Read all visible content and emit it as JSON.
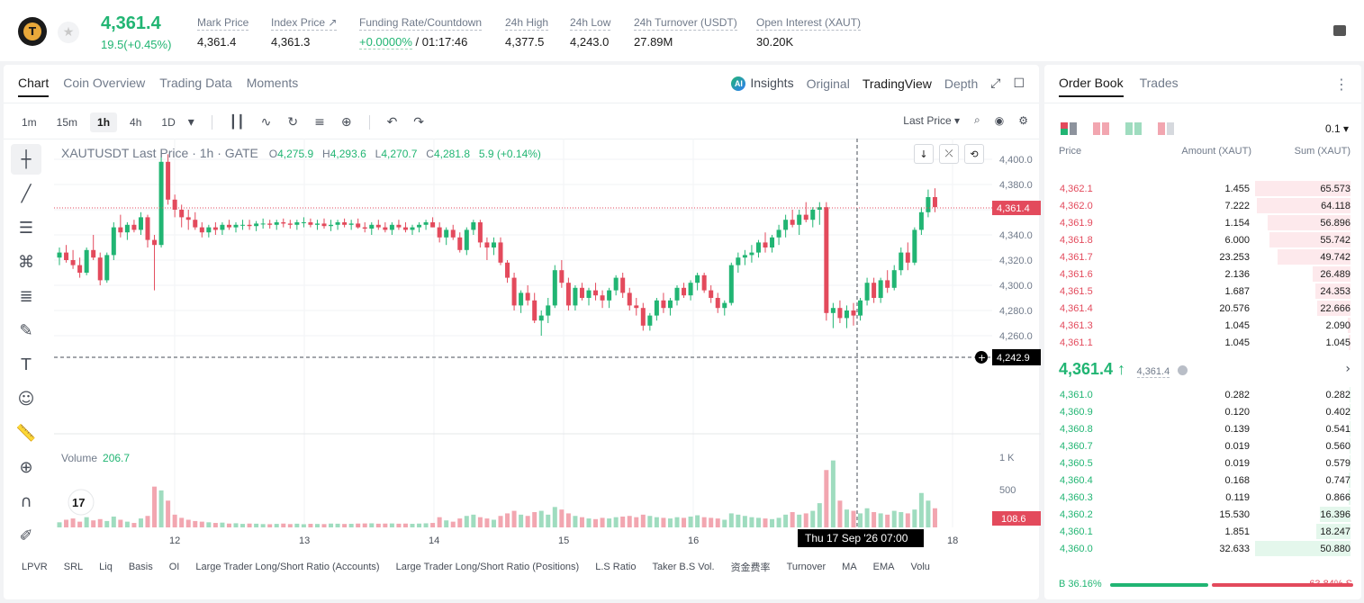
{
  "header": {
    "logo_icon": "tether-gold-icon",
    "last_price": "4,361.4",
    "change": "19.5(+0.45%)",
    "stats": [
      {
        "label": "Mark Price",
        "value": "4,361.4"
      },
      {
        "label": "Index Price ↗",
        "value": "4,361.3"
      },
      {
        "label": "Funding Rate/Countdown",
        "value_green": "+0.0000%",
        "value": " / 01:17:46"
      },
      {
        "label": "24h High",
        "value": "4,377.5"
      },
      {
        "label": "24h Low",
        "value": "4,243.0"
      },
      {
        "label": "24h Turnover (USDT)",
        "value": "27.89M"
      },
      {
        "label": "Open Interest (XAUT)",
        "value": "30.20K"
      }
    ]
  },
  "chart_tabs": [
    "Chart",
    "Coin Overview",
    "Trading Data",
    "Moments"
  ],
  "view_tabs": {
    "insights": "Insights",
    "original": "Original",
    "tradingview": "TradingView",
    "depth": "Depth"
  },
  "timeframes": [
    "1m",
    "15m",
    "1h",
    "4h",
    "1D"
  ],
  "last_price_selector": "Last Price ▾",
  "ohlc": {
    "symbol": "XAUTUSDT Last Price · 1h · GATE",
    "o": "4,275.9",
    "h": "4,293.6",
    "l": "4,270.7",
    "c": "4,281.8",
    "chg": "5.9 (+0.14%)"
  },
  "volume": {
    "label": "Volume",
    "value": "206.7"
  },
  "chart_labels": {
    "price_tag": "4,361.4",
    "crosshair_price": "4,242.9",
    "vol_tag": "108.6",
    "crosshair_time": "Thu 17 Sep '26   07:00"
  },
  "bottom_indicators": [
    "LPVR",
    "SRL",
    "Liq",
    "Basis",
    "OI",
    "Large Trader Long/Short Ratio (Accounts)",
    "Large Trader Long/Short Ratio (Positions)",
    "L.S Ratio",
    "Taker B.S Vol.",
    "资金费率",
    "Turnover",
    "MA",
    "EMA",
    "Volu"
  ],
  "colors": {
    "up": "#21b573",
    "down": "#e34a5c",
    "up_vol": "#9fdcbf",
    "down_vol": "#f2a6b0"
  },
  "chart_data": {
    "type": "candlestick",
    "x_ticks": [
      "12",
      "13",
      "14",
      "15",
      "16",
      "18"
    ],
    "y_ticks": [
      "4,400.0",
      "4,380.0",
      "4,360.0",
      "4,340.0",
      "4,320.0",
      "4,300.0",
      "4,280.0",
      "4,260.0"
    ],
    "vol_ticks": [
      "1 K",
      "500"
    ],
    "ylim": [
      4240,
      4404
    ],
    "vol_max": 1200,
    "candles": [
      [
        4322,
        4330,
        4316,
        4326,
        80
      ],
      [
        4326,
        4332,
        4318,
        4320,
        120
      ],
      [
        4320,
        4328,
        4313,
        4316,
        140
      ],
      [
        4316,
        4322,
        4306,
        4310,
        90
      ],
      [
        4310,
        4330,
        4308,
        4328,
        160
      ],
      [
        4328,
        4340,
        4320,
        4322,
        110
      ],
      [
        4322,
        4326,
        4300,
        4304,
        130
      ],
      [
        4304,
        4326,
        4302,
        4324,
        100
      ],
      [
        4324,
        4350,
        4320,
        4346,
        170
      ],
      [
        4346,
        4356,
        4338,
        4342,
        120
      ],
      [
        4342,
        4350,
        4336,
        4348,
        90
      ],
      [
        4348,
        4352,
        4342,
        4344,
        70
      ],
      [
        4344,
        4358,
        4340,
        4354,
        140
      ],
      [
        4354,
        4356,
        4330,
        4336,
        180
      ],
      [
        4336,
        4340,
        4296,
        4332,
        640
      ],
      [
        4332,
        4406,
        4330,
        4398,
        580
      ],
      [
        4398,
        4404,
        4364,
        4368,
        420
      ],
      [
        4368,
        4372,
        4354,
        4360,
        200
      ],
      [
        4360,
        4364,
        4346,
        4354,
        150
      ],
      [
        4354,
        4360,
        4344,
        4352,
        120
      ],
      [
        4352,
        4358,
        4344,
        4346,
        100
      ],
      [
        4346,
        4350,
        4338,
        4342,
        90
      ],
      [
        4342,
        4348,
        4338,
        4346,
        80
      ],
      [
        4346,
        4350,
        4340,
        4344,
        70
      ],
      [
        4344,
        4350,
        4340,
        4348,
        75
      ],
      [
        4348,
        4352,
        4344,
        4346,
        60
      ],
      [
        4346,
        4350,
        4342,
        4348,
        65
      ],
      [
        4348,
        4352,
        4344,
        4348,
        55
      ],
      [
        4348,
        4352,
        4344,
        4347,
        60
      ],
      [
        4347,
        4351,
        4343,
        4349,
        58
      ],
      [
        4349,
        4353,
        4345,
        4349,
        52
      ],
      [
        4349,
        4352,
        4345,
        4348,
        50
      ],
      [
        4348,
        4352,
        4344,
        4350,
        55
      ],
      [
        4350,
        4353,
        4346,
        4349,
        60
      ],
      [
        4349,
        4352,
        4345,
        4348,
        52
      ],
      [
        4348,
        4352,
        4344,
        4350,
        58
      ],
      [
        4350,
        4354,
        4346,
        4350,
        50
      ],
      [
        4350,
        4353,
        4346,
        4348,
        56
      ],
      [
        4348,
        4352,
        4344,
        4349,
        54
      ],
      [
        4349,
        4353,
        4345,
        4347,
        52
      ],
      [
        4347,
        4352,
        4343,
        4348,
        60
      ],
      [
        4348,
        4352,
        4344,
        4350,
        58
      ],
      [
        4350,
        4353,
        4346,
        4348,
        54
      ],
      [
        4348,
        4352,
        4344,
        4349,
        56
      ],
      [
        4349,
        4353,
        4345,
        4346,
        60
      ],
      [
        4346,
        4350,
        4342,
        4345,
        62
      ],
      [
        4345,
        4350,
        4340,
        4348,
        64
      ],
      [
        4348,
        4352,
        4344,
        4346,
        58
      ],
      [
        4346,
        4350,
        4342,
        4344,
        60
      ],
      [
        4344,
        4350,
        4340,
        4348,
        62
      ],
      [
        4348,
        4352,
        4344,
        4346,
        58
      ],
      [
        4346,
        4350,
        4342,
        4344,
        60
      ],
      [
        4344,
        4348,
        4340,
        4346,
        56
      ],
      [
        4346,
        4350,
        4342,
        4348,
        60
      ],
      [
        4348,
        4352,
        4344,
        4350,
        64
      ],
      [
        4350,
        4354,
        4346,
        4346,
        70
      ],
      [
        4346,
        4350,
        4334,
        4338,
        160
      ],
      [
        4338,
        4346,
        4332,
        4344,
        110
      ],
      [
        4344,
        4348,
        4336,
        4338,
        90
      ],
      [
        4338,
        4342,
        4326,
        4328,
        140
      ],
      [
        4328,
        4346,
        4324,
        4344,
        180
      ],
      [
        4344,
        4352,
        4340,
        4350,
        200
      ],
      [
        4350,
        4352,
        4330,
        4334,
        160
      ],
      [
        4334,
        4338,
        4320,
        4330,
        140
      ],
      [
        4330,
        4338,
        4324,
        4334,
        120
      ],
      [
        4334,
        4338,
        4316,
        4318,
        180
      ],
      [
        4318,
        4320,
        4302,
        4306,
        220
      ],
      [
        4306,
        4310,
        4280,
        4284,
        260
      ],
      [
        4284,
        4296,
        4278,
        4294,
        200
      ],
      [
        4294,
        4300,
        4284,
        4288,
        180
      ],
      [
        4288,
        4294,
        4270,
        4272,
        240
      ],
      [
        4272,
        4280,
        4260,
        4276,
        260
      ],
      [
        4276,
        4290,
        4270,
        4284,
        200
      ],
      [
        4284,
        4316,
        4282,
        4312,
        320
      ],
      [
        4312,
        4320,
        4298,
        4302,
        280
      ],
      [
        4302,
        4306,
        4280,
        4284,
        220
      ],
      [
        4284,
        4300,
        4280,
        4298,
        180
      ],
      [
        4298,
        4302,
        4288,
        4290,
        160
      ],
      [
        4290,
        4298,
        4284,
        4296,
        140
      ],
      [
        4296,
        4302,
        4288,
        4292,
        130
      ],
      [
        4292,
        4296,
        4282,
        4288,
        150
      ],
      [
        4288,
        4298,
        4282,
        4296,
        140
      ],
      [
        4296,
        4308,
        4292,
        4306,
        160
      ],
      [
        4306,
        4310,
        4290,
        4294,
        170
      ],
      [
        4294,
        4298,
        4280,
        4284,
        180
      ],
      [
        4284,
        4290,
        4276,
        4282,
        160
      ],
      [
        4282,
        4286,
        4264,
        4268,
        200
      ],
      [
        4268,
        4278,
        4264,
        4276,
        180
      ],
      [
        4276,
        4290,
        4272,
        4288,
        160
      ],
      [
        4288,
        4294,
        4278,
        4282,
        150
      ],
      [
        4282,
        4290,
        4276,
        4288,
        140
      ],
      [
        4288,
        4300,
        4284,
        4298,
        160
      ],
      [
        4298,
        4302,
        4290,
        4292,
        150
      ],
      [
        4292,
        4304,
        4288,
        4302,
        170
      ],
      [
        4302,
        4310,
        4296,
        4308,
        190
      ],
      [
        4308,
        4310,
        4294,
        4296,
        160
      ],
      [
        4296,
        4300,
        4286,
        4290,
        150
      ],
      [
        4290,
        4294,
        4278,
        4282,
        140
      ],
      [
        4282,
        4288,
        4276,
        4286,
        120
      ],
      [
        4286,
        4318,
        4284,
        4316,
        220
      ],
      [
        4316,
        4326,
        4310,
        4322,
        200
      ],
      [
        4322,
        4328,
        4316,
        4324,
        180
      ],
      [
        4324,
        4332,
        4318,
        4326,
        160
      ],
      [
        4326,
        4336,
        4322,
        4334,
        150
      ],
      [
        4334,
        4342,
        4326,
        4330,
        140
      ],
      [
        4330,
        4340,
        4326,
        4338,
        130
      ],
      [
        4338,
        4348,
        4332,
        4344,
        150
      ],
      [
        4344,
        4356,
        4338,
        4352,
        200
      ],
      [
        4352,
        4360,
        4346,
        4348,
        240
      ],
      [
        4348,
        4360,
        4340,
        4356,
        200
      ],
      [
        4356,
        4366,
        4350,
        4352,
        220
      ],
      [
        4352,
        4362,
        4346,
        4360,
        260
      ],
      [
        4360,
        4366,
        4348,
        4362,
        380
      ],
      [
        4362,
        4366,
        4272,
        4278,
        900
      ],
      [
        4278,
        4286,
        4266,
        4282,
        1050
      ],
      [
        4282,
        4288,
        4270,
        4274,
        420
      ],
      [
        4274,
        4284,
        4266,
        4280,
        280
      ],
      [
        4280,
        4286,
        4268,
        4276,
        260
      ],
      [
        4276,
        4290,
        4272,
        4288,
        220
      ],
      [
        4288,
        4306,
        4284,
        4302,
        300
      ],
      [
        4302,
        4306,
        4286,
        4290,
        240
      ],
      [
        4290,
        4306,
        4286,
        4304,
        220
      ],
      [
        4304,
        4312,
        4294,
        4298,
        200
      ],
      [
        4298,
        4316,
        4296,
        4312,
        260
      ],
      [
        4312,
        4330,
        4308,
        4326,
        240
      ],
      [
        4326,
        4334,
        4312,
        4318,
        220
      ],
      [
        4318,
        4346,
        4316,
        4344,
        280
      ],
      [
        4344,
        4362,
        4340,
        4358,
        540
      ],
      [
        4358,
        4376,
        4354,
        4370,
        420
      ],
      [
        4370,
        4377,
        4358,
        4362,
        300
      ]
    ]
  },
  "orderbook": {
    "tabs": [
      "Order Book",
      "Trades"
    ],
    "precision": "0.1 ▾",
    "headers": {
      "price": "Price",
      "amount": "Amount (XAUT)",
      "sum": "Sum (XAUT)"
    },
    "asks": [
      {
        "p": "4,362.1",
        "a": "1.455",
        "s": "65.573",
        "f": 1.0
      },
      {
        "p": "4,362.0",
        "a": "7.222",
        "s": "64.118",
        "f": 0.98
      },
      {
        "p": "4,361.9",
        "a": "1.154",
        "s": "56.896",
        "f": 0.87
      },
      {
        "p": "4,361.8",
        "a": "6.000",
        "s": "55.742",
        "f": 0.85
      },
      {
        "p": "4,361.7",
        "a": "23.253",
        "s": "49.742",
        "f": 0.76
      },
      {
        "p": "4,361.6",
        "a": "2.136",
        "s": "26.489",
        "f": 0.4
      },
      {
        "p": "4,361.5",
        "a": "1.687",
        "s": "24.353",
        "f": 0.37
      },
      {
        "p": "4,361.4",
        "a": "20.576",
        "s": "22.666",
        "f": 0.35
      },
      {
        "p": "4,361.3",
        "a": "1.045",
        "s": "2.090",
        "f": 0.03
      },
      {
        "p": "4,361.1",
        "a": "1.045",
        "s": "1.045",
        "f": 0.016
      }
    ],
    "mid_price": "4,361.4 ↑",
    "mark_price": "4,361.4",
    "bids": [
      {
        "p": "4,361.0",
        "a": "0.282",
        "s": "0.282",
        "f": 0.006
      },
      {
        "p": "4,360.9",
        "a": "0.120",
        "s": "0.402",
        "f": 0.008
      },
      {
        "p": "4,360.8",
        "a": "0.139",
        "s": "0.541",
        "f": 0.011
      },
      {
        "p": "4,360.7",
        "a": "0.019",
        "s": "0.560",
        "f": 0.011
      },
      {
        "p": "4,360.5",
        "a": "0.019",
        "s": "0.579",
        "f": 0.011
      },
      {
        "p": "4,360.4",
        "a": "0.168",
        "s": "0.747",
        "f": 0.015
      },
      {
        "p": "4,360.3",
        "a": "0.119",
        "s": "0.866",
        "f": 0.017
      },
      {
        "p": "4,360.2",
        "a": "15.530",
        "s": "16.396",
        "f": 0.32
      },
      {
        "p": "4,360.1",
        "a": "1.851",
        "s": "18.247",
        "f": 0.36
      },
      {
        "p": "4,360.0",
        "a": "32.633",
        "s": "50.880",
        "f": 1.0
      }
    ],
    "buy_ratio": "B 36.16%",
    "sell_ratio": "63.84% S",
    "buy_fraction": 0.3616
  }
}
